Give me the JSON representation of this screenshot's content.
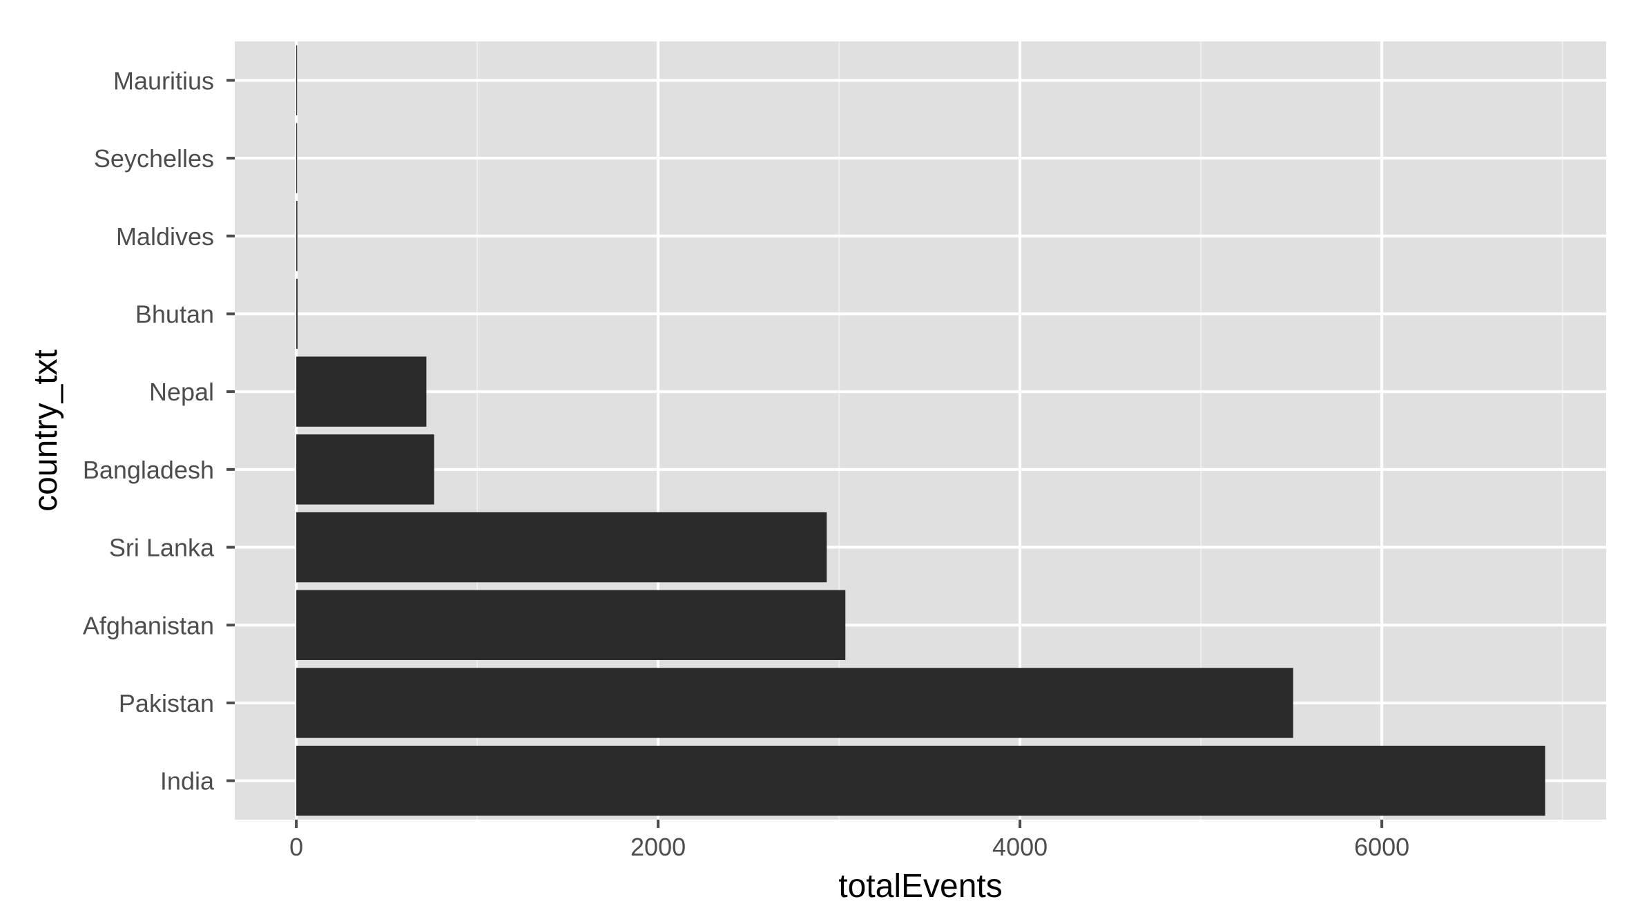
{
  "chart_data": {
    "type": "bar",
    "orientation": "horizontal",
    "title": "",
    "xlabel": "totalEvents",
    "ylabel": "country_txt",
    "categories": [
      "India",
      "Pakistan",
      "Afghanistan",
      "Sri Lanka",
      "Bangladesh",
      "Nepal",
      "Bhutan",
      "Maldives",
      "Seychelles",
      "Mauritius"
    ],
    "values": [
      6903,
      5510,
      3035,
      2932,
      762,
      719,
      7,
      6,
      2,
      1
    ],
    "xlim": [
      -340,
      7240
    ],
    "xticks": [
      0,
      2000,
      4000,
      6000
    ],
    "xtick_labels": [
      "0",
      "2000",
      "4000",
      "6000"
    ],
    "grid": true,
    "legend": "none",
    "colors": {
      "panel": "#e0e0e0",
      "grid_major": "#ffffff",
      "grid_minor": "#eeeeee",
      "bar": "#2a2a2a",
      "tick_text": "#4d4d4d",
      "tick_mark": "#4d4d4d",
      "axis_title": "#000000"
    }
  }
}
